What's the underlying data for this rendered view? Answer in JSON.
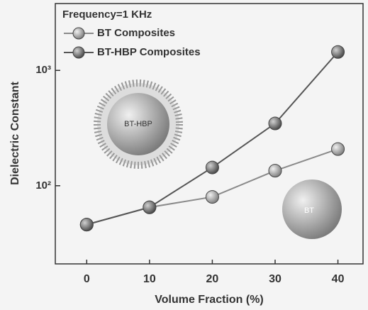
{
  "chart_data": {
    "type": "line",
    "annotations": [
      "Frequency=1 KHz",
      "BT-HBP",
      "BT"
    ],
    "x_label": "Volume Fraction (%)",
    "y_label": "Dielectric Constant",
    "x": [
      0,
      10,
      20,
      30,
      40
    ],
    "series": [
      {
        "name": "BT Composites",
        "color": "#8a8a8a",
        "values": [
          46,
          65,
          80,
          135,
          208
        ]
      },
      {
        "name": "BT-HBP Composites",
        "color": "#555555",
        "values": [
          46,
          65,
          144,
          347,
          1445
        ]
      }
    ],
    "xlim": [
      -5,
      44
    ],
    "xticks": [
      0,
      10,
      20,
      30,
      40
    ],
    "ylim": [
      21,
      3800
    ],
    "yscale": "log",
    "yticks": [
      {
        "value": 100,
        "label": "10²"
      },
      {
        "value": 1000,
        "label": "10³"
      }
    ]
  }
}
